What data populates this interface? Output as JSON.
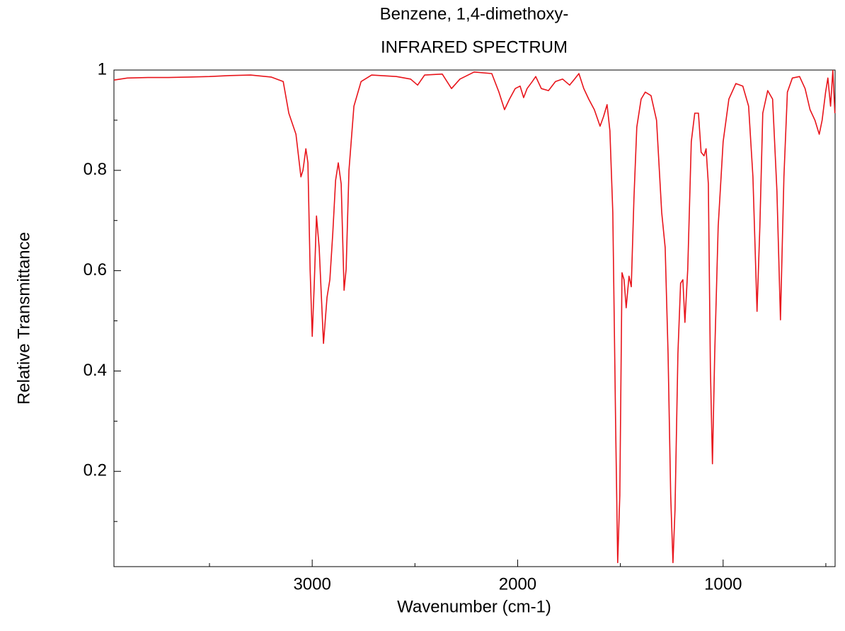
{
  "chart_data": {
    "type": "line",
    "title": "Benzene, 1,4-dimethoxy-",
    "subtitle": "INFRARED SPECTRUM",
    "x_label": "Wavenumber (cm-1)",
    "y_label": "Relative Transmittance",
    "color": "#e8141b",
    "xlim": [
      3965,
      455
    ],
    "ylim": [
      0.01,
      1
    ],
    "xticks": [
      3000,
      2000,
      1000
    ],
    "xminorticks": [
      3500,
      2500,
      1500,
      500
    ],
    "yticks": [
      0.2,
      0.4,
      0.6,
      0.8,
      1
    ],
    "yminorticks": [
      0.1,
      0.3,
      0.5,
      0.7,
      0.9
    ],
    "x": [
      3965,
      3900,
      3800,
      3700,
      3600,
      3500,
      3400,
      3300,
      3200,
      3141,
      3114,
      3079,
      3055,
      3045,
      3031,
      3021,
      3010,
      3000,
      2990,
      2979,
      2966,
      2945,
      2928,
      2914,
      2900,
      2886,
      2873,
      2859,
      2845,
      2835,
      2821,
      2797,
      2762,
      2711,
      2590,
      2521,
      2487,
      2453,
      2367,
      2322,
      2281,
      2212,
      2126,
      2091,
      2064,
      2040,
      2012,
      1988,
      1971,
      1954,
      1929,
      1912,
      1885,
      1850,
      1816,
      1781,
      1747,
      1723,
      1702,
      1678,
      1654,
      1627,
      1599,
      1582,
      1565,
      1551,
      1537,
      1523,
      1513,
      1503,
      1492,
      1482,
      1472,
      1458,
      1447,
      1434,
      1420,
      1399,
      1379,
      1351,
      1324,
      1299,
      1282,
      1268,
      1255,
      1244,
      1234,
      1220,
      1207,
      1196,
      1186,
      1172,
      1155,
      1138,
      1120,
      1107,
      1093,
      1083,
      1072,
      1062,
      1052,
      1041,
      1024,
      1000,
      972,
      938,
      904,
      876,
      855,
      835,
      821,
      807,
      783,
      759,
      738,
      721,
      704,
      687,
      663,
      628,
      601,
      577,
      553,
      532,
      518,
      501,
      490,
      477,
      466,
      456
    ],
    "values": [
      0.98,
      0.984,
      0.985,
      0.985,
      0.986,
      0.987,
      0.989,
      0.99,
      0.986,
      0.977,
      0.914,
      0.872,
      0.787,
      0.8,
      0.843,
      0.815,
      0.603,
      0.469,
      0.575,
      0.709,
      0.646,
      0.455,
      0.547,
      0.582,
      0.674,
      0.78,
      0.815,
      0.773,
      0.561,
      0.603,
      0.8,
      0.928,
      0.977,
      0.99,
      0.987,
      0.982,
      0.97,
      0.99,
      0.992,
      0.963,
      0.982,
      0.996,
      0.993,
      0.956,
      0.921,
      0.942,
      0.963,
      0.968,
      0.945,
      0.963,
      0.977,
      0.987,
      0.963,
      0.959,
      0.977,
      0.982,
      0.97,
      0.982,
      0.993,
      0.963,
      0.942,
      0.921,
      0.888,
      0.907,
      0.931,
      0.879,
      0.716,
      0.293,
      0.018,
      0.152,
      0.596,
      0.582,
      0.526,
      0.589,
      0.568,
      0.745,
      0.886,
      0.942,
      0.956,
      0.949,
      0.9,
      0.716,
      0.646,
      0.434,
      0.152,
      0.018,
      0.123,
      0.434,
      0.575,
      0.582,
      0.497,
      0.603,
      0.857,
      0.914,
      0.914,
      0.836,
      0.829,
      0.843,
      0.773,
      0.406,
      0.215,
      0.434,
      0.688,
      0.857,
      0.942,
      0.973,
      0.968,
      0.928,
      0.787,
      0.519,
      0.688,
      0.914,
      0.959,
      0.942,
      0.759,
      0.502,
      0.787,
      0.956,
      0.984,
      0.987,
      0.963,
      0.921,
      0.9,
      0.872,
      0.9,
      0.956,
      0.984,
      0.928,
      0.999,
      0.914
    ]
  }
}
